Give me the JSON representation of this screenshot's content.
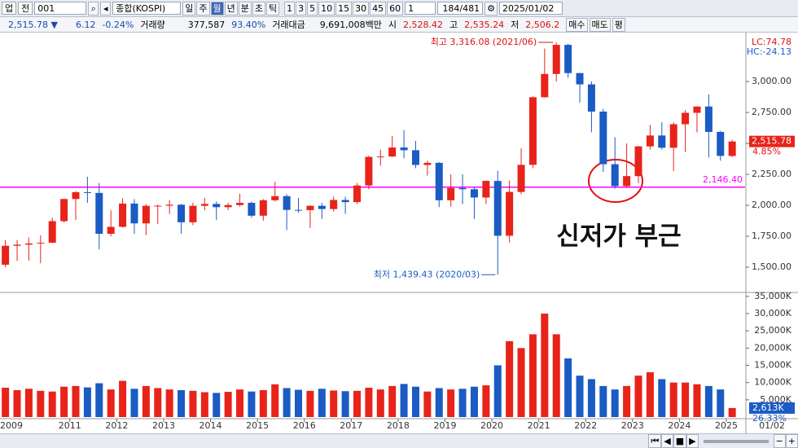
{
  "toolbar": {
    "market": "업",
    "type": "전",
    "code": "001",
    "name": "종합(KOSPI)",
    "periods": [
      "일",
      "주",
      "월",
      "년",
      "분",
      "초",
      "틱"
    ],
    "active_period_index": 2,
    "intervals": [
      "1",
      "3",
      "5",
      "10",
      "15",
      "30",
      "45",
      "60"
    ],
    "count": "1",
    "range": "184/481",
    "date": "2025/01/02"
  },
  "info_bar": {
    "price": "2,515.78 ▼",
    "change": "6.12",
    "change_pct": "-0.24%",
    "volume_label": "거래량",
    "volume": "377,587",
    "volume_ratio": "93.40%",
    "amount_label": "거래대금",
    "amount": "9,691,008백만",
    "open_label": "시",
    "open": "2,528.42",
    "high_label": "고",
    "high": "2,535.24",
    "low_label": "저",
    "low": "2,506.2",
    "buttons": [
      "매수",
      "매도",
      "평"
    ]
  },
  "chart_data": {
    "type": "candlestick",
    "up_color": "#e8231a",
    "down_color": "#1a5bc4",
    "x": [
      2009.625,
      2009.875,
      2010.125,
      2010.375,
      2010.625,
      2010.875,
      2011.125,
      2011.375,
      2011.625,
      2011.875,
      2012.125,
      2012.375,
      2012.625,
      2012.875,
      2013.125,
      2013.375,
      2013.625,
      2013.875,
      2014.125,
      2014.375,
      2014.625,
      2014.875,
      2015.125,
      2015.375,
      2015.625,
      2015.875,
      2016.125,
      2016.375,
      2016.625,
      2016.875,
      2017.125,
      2017.375,
      2017.625,
      2017.875,
      2018.125,
      2018.375,
      2018.625,
      2018.875,
      2019.125,
      2019.375,
      2019.625,
      2019.875,
      2020.125,
      2020.375,
      2020.625,
      2020.875,
      2021.125,
      2021.375,
      2021.625,
      2021.875,
      2022.125,
      2022.375,
      2022.625,
      2022.875,
      2023.125,
      2023.375,
      2023.625,
      2023.875,
      2024.125,
      2024.375,
      2024.625,
      2024.875,
      2025.125
    ],
    "ohlc": [
      [
        1520,
        1720,
        1500,
        1673
      ],
      [
        1673,
        1720,
        1550,
        1682
      ],
      [
        1682,
        1740,
        1552,
        1692
      ],
      [
        1692,
        1757,
        1532,
        1698
      ],
      [
        1698,
        1900,
        1696,
        1872
      ],
      [
        1872,
        2052,
        1860,
        2051
      ],
      [
        2051,
        2115,
        1882,
        2106
      ],
      [
        2106,
        2231,
        2020,
        2100
      ],
      [
        2100,
        2180,
        1644,
        1770
      ],
      [
        1770,
        1960,
        1750,
        1826
      ],
      [
        1826,
        2057,
        1820,
        2014
      ],
      [
        2014,
        2050,
        1770,
        1854
      ],
      [
        1854,
        2010,
        1760,
        1996
      ],
      [
        1996,
        2005,
        1850,
        1997
      ],
      [
        1997,
        2042,
        1930,
        2005
      ],
      [
        2005,
        2010,
        1770,
        1863
      ],
      [
        1863,
        2020,
        1840,
        1996
      ],
      [
        1996,
        2060,
        1960,
        2011
      ],
      [
        2011,
        2030,
        1880,
        1985
      ],
      [
        1985,
        2020,
        1960,
        2002
      ],
      [
        2002,
        2093,
        1990,
        2020
      ],
      [
        2020,
        2030,
        1900,
        1916
      ],
      [
        1916,
        2050,
        1876,
        2041
      ],
      [
        2041,
        2190,
        2030,
        2074
      ],
      [
        2074,
        2090,
        1800,
        1963
      ],
      [
        1963,
        2060,
        1940,
        1961
      ],
      [
        1961,
        2000,
        1817,
        1996
      ],
      [
        1996,
        2020,
        1890,
        1970
      ],
      [
        1970,
        2070,
        1950,
        2043
      ],
      [
        2043,
        2070,
        1930,
        2026
      ],
      [
        2026,
        2180,
        2010,
        2160
      ],
      [
        2160,
        2400,
        2130,
        2391
      ],
      [
        2391,
        2450,
        2320,
        2394
      ],
      [
        2394,
        2560,
        2390,
        2467
      ],
      [
        2467,
        2607,
        2380,
        2445
      ],
      [
        2445,
        2520,
        2300,
        2326
      ],
      [
        2326,
        2360,
        2240,
        2343
      ],
      [
        2343,
        2350,
        1985,
        2041
      ],
      [
        2041,
        2250,
        1990,
        2140
      ],
      [
        2140,
        2250,
        2010,
        2130
      ],
      [
        2130,
        2150,
        1890,
        2063
      ],
      [
        2063,
        2200,
        2010,
        2197
      ],
      [
        2197,
        2280,
        1439.43,
        1754
      ],
      [
        1754,
        2200,
        1700,
        2108
      ],
      [
        2108,
        2460,
        2090,
        2327
      ],
      [
        2327,
        2880,
        2300,
        2873
      ],
      [
        2873,
        3266,
        2870,
        3061
      ],
      [
        3061,
        3316.08,
        3000,
        3296
      ],
      [
        3296,
        3305,
        3030,
        3068
      ],
      [
        3068,
        3070,
        2830,
        2977
      ],
      [
        2977,
        3000,
        2590,
        2757
      ],
      [
        2757,
        2780,
        2270,
        2332
      ],
      [
        2332,
        2550,
        2134,
        2155
      ],
      [
        2155,
        2500,
        2140,
        2236
      ],
      [
        2236,
        2480,
        2180,
        2476
      ],
      [
        2476,
        2650,
        2450,
        2564
      ],
      [
        2564,
        2670,
        2450,
        2465
      ],
      [
        2465,
        2670,
        2277,
        2655
      ],
      [
        2655,
        2770,
        2430,
        2747
      ],
      [
        2747,
        2800,
        2590,
        2798
      ],
      [
        2798,
        2896,
        2386,
        2593
      ],
      [
        2593,
        2600,
        2360,
        2399
      ],
      [
        2399,
        2530,
        2390,
        2515.78
      ]
    ],
    "xlim": [
      2009.51,
      2025.4
    ],
    "xticks": [
      2011,
      2012,
      2013,
      2014,
      2015,
      2016,
      2017,
      2018,
      2019,
      2020,
      2021,
      2022,
      2023,
      2024,
      2025
    ],
    "first_date_label": "2009",
    "last_date_label": "01/02",
    "ylim": [
      1303,
      3382
    ],
    "yticks": [
      {
        "value": 1500,
        "label": "1,500.00"
      },
      {
        "value": 1750,
        "label": "1,750.00"
      },
      {
        "value": 2000,
        "label": "2,000.00"
      },
      {
        "value": 2250,
        "label": "2,250.00"
      },
      {
        "value": 2500,
        "label": "2,500.00"
      },
      {
        "value": 2750,
        "label": "2,750.00"
      },
      {
        "value": 3000,
        "label": "3,000.00"
      }
    ],
    "support_line": {
      "value": 2146.4,
      "label": "2,146.40",
      "color": "#ff00ff"
    },
    "high_annotation": "최고 3,316.08 (2021/06)",
    "low_annotation": "최저 1,439.43 (2020/03)",
    "callout": "신저가 부근",
    "lc_label": "LC:74.78",
    "hc_label": "HC:-24.13",
    "last_price_label": "2,515.78",
    "last_change_label": "4.85%",
    "volume": {
      "ylim": [
        0,
        35900
      ],
      "yticks": [
        {
          "value": 5000,
          "label": "5,000K"
        },
        {
          "value": 10000,
          "label": "10,000K"
        },
        {
          "value": 15000,
          "label": "15,000K"
        },
        {
          "value": 20000,
          "label": "20,000K"
        },
        {
          "value": 25000,
          "label": "25,000K"
        },
        {
          "value": 30000,
          "label": "30,000K"
        },
        {
          "value": 35000,
          "label": "35,000K"
        }
      ],
      "values": [
        8500,
        7800,
        8200,
        7600,
        7400,
        8800,
        9000,
        8600,
        9800,
        8000,
        10500,
        8200,
        9000,
        8400,
        8000,
        7800,
        7600,
        7200,
        7000,
        7300,
        8000,
        7400,
        7800,
        9500,
        8400,
        7900,
        7600,
        8200,
        7700,
        7500,
        7600,
        8500,
        8000,
        9000,
        9600,
        8800,
        7400,
        8400,
        8000,
        8200,
        8800,
        9200,
        15000,
        22000,
        20000,
        24000,
        30000,
        24000,
        17000,
        12000,
        11000,
        9000,
        8000,
        9000,
        12000,
        13000,
        11000,
        10000,
        10000,
        9500,
        9000,
        8000,
        2613
      ],
      "last_label": "2,613K",
      "last_ratio_label": "26.33%"
    }
  }
}
